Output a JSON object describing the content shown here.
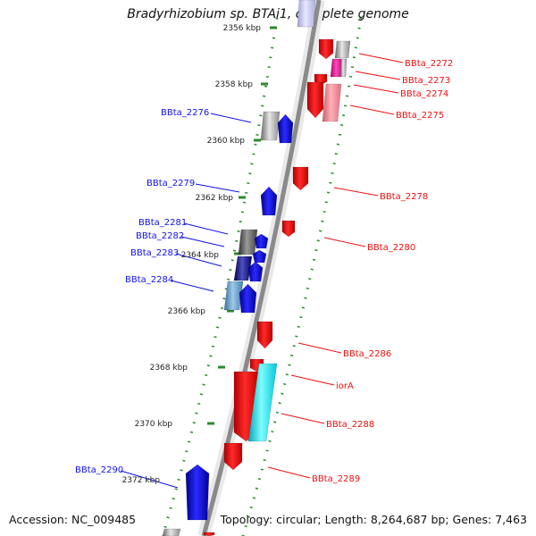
{
  "title": "Bradyrhizobium sp. BTAi1, complete genome",
  "accession": "Accession: NC_009485",
  "summary": "Topology: circular; Length: 8,264,687 bp; Genes: 7,463",
  "colors": {
    "forward": "#1010ee",
    "reverse": "#ee1010",
    "backbone": "#8a8a8a",
    "tick": "#2a8a2a"
  },
  "ticks": [
    "2356 kbp",
    "2358 kbp",
    "2360 kbp",
    "2362 kbp",
    "2364 kbp",
    "2366 kbp",
    "2368 kbp",
    "2370 kbp",
    "2372 kbp"
  ],
  "forward_labels": [
    "BBta_2276",
    "BBta_2279",
    "BBta_2281",
    "BBta_2282",
    "BBta_2283",
    "BBta_2284",
    "BBta_2290"
  ],
  "reverse_labels": [
    "BBta_2272",
    "BBta_2273",
    "BBta_2274",
    "BBta_2275",
    "BBta_2278",
    "BBta_2280",
    "BBta_2286",
    "iorA",
    "BBta_2288",
    "BBta_2289"
  ]
}
